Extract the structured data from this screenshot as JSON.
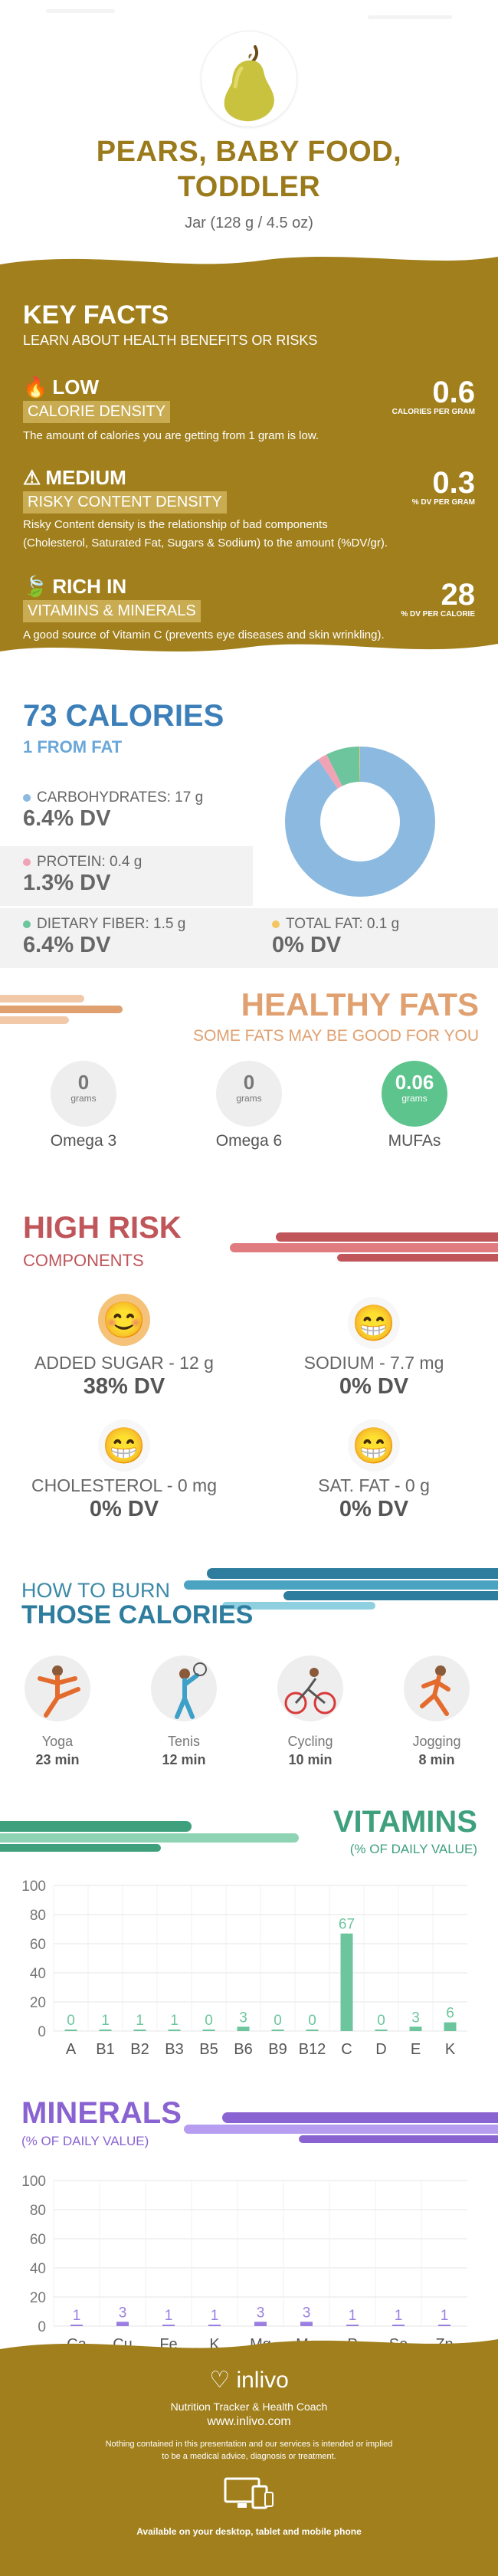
{
  "header": {
    "title_line1": "PEARS, BABY FOOD,",
    "title_line2": "TODDLER",
    "serving": "Jar (128 g / 4.5 oz)"
  },
  "key_facts": {
    "title": "KEY FACTS",
    "subtitle": "LEARN ABOUT HEALTH BENEFITS OR RISKS",
    "calorie_density": {
      "level": "LOW",
      "label": "CALORIE DENSITY",
      "value": "0.6",
      "unit": "CALORIES PER GRAM",
      "description": "The amount of calories you are getting from 1 gram is low."
    },
    "risky_content": {
      "level": "MEDIUM",
      "label": "RISKY CONTENT DENSITY",
      "value": "0.3",
      "unit": "% DV PER GRAM",
      "description_1": "Risky Content density is the relationship of bad components",
      "description_2": "(Cholesterol, Saturated Fat, Sugars & Sodium) to the amount (%DV/gr)."
    },
    "rich_in": {
      "level": "RICH  IN",
      "label": "VITAMINS & MINERALS",
      "value": "28",
      "unit": "% DV PER CALORIE",
      "description": "A good source of Vitamin C (prevents eye diseases and skin wrinkling)."
    }
  },
  "calories": {
    "title": "73 CALORIES",
    "subtitle": "1 FROM FAT",
    "carbs": {
      "label": "CARBOHYDRATES: 17 g",
      "dv": "6.4% DV",
      "color": "#8bb9e0"
    },
    "protein": {
      "label": "PROTEIN: 0.4 g",
      "dv": "1.3% DV",
      "color": "#f0a3b5"
    },
    "fiber": {
      "label": "DIETARY FIBER: 1.5 g",
      "dv": "6.4% DV",
      "color": "#6cc59c"
    },
    "fat": {
      "label": "TOTAL FAT: 0.1 g",
      "dv": "0% DV",
      "color": "#f2c560"
    },
    "donut": [
      {
        "name": "carbohydrates",
        "value": 90.5,
        "color": "#8bb9e0"
      },
      {
        "name": "protein",
        "value": 2.1,
        "color": "#f0a3b5"
      },
      {
        "name": "fiber",
        "value": 7.2,
        "color": "#6cc59c"
      },
      {
        "name": "fat",
        "value": 0.2,
        "color": "#f2c560"
      }
    ]
  },
  "healthy_fats": {
    "title": "HEALTHY FATS",
    "subtitle": "SOME FATS MAY BE GOOD FOR YOU",
    "items": [
      {
        "name": "Omega 3",
        "value": "0",
        "unit": "grams"
      },
      {
        "name": "Omega 6",
        "value": "0",
        "unit": "grams"
      },
      {
        "name": "MUFAs",
        "value": "0.06",
        "unit": "grams"
      }
    ]
  },
  "high_risk": {
    "title": "HIGH RISK",
    "subtitle": "COMPONENTS",
    "items": [
      {
        "name": "ADDED SUGAR - 12 g",
        "dv": "38% DV"
      },
      {
        "name": "SODIUM - 7.7 mg",
        "dv": "0% DV"
      },
      {
        "name": "CHOLESTEROL - 0 mg",
        "dv": "0% DV"
      },
      {
        "name": "SAT. FAT - 0 g",
        "dv": "0% DV"
      }
    ]
  },
  "burn": {
    "title_1": "HOW TO BURN",
    "title_2": "THOSE CALORIES",
    "activities": [
      {
        "name": "Yoga",
        "time": "23 min"
      },
      {
        "name": "Tenis",
        "time": "12 min"
      },
      {
        "name": "Cycling",
        "time": "10 min"
      },
      {
        "name": "Jogging",
        "time": "8 min"
      }
    ]
  },
  "vitamins": {
    "title": "VITAMINS",
    "subtitle": "(% OF DAILY VALUE)"
  },
  "minerals": {
    "title": "MINERALS",
    "subtitle": "(% OF DAILY VALUE)"
  },
  "chart_data": [
    {
      "type": "bar",
      "categories": [
        "A",
        "B1",
        "B2",
        "B3",
        "B5",
        "B6",
        "B9",
        "B12",
        "C",
        "D",
        "E",
        "K"
      ],
      "values": [
        0,
        1,
        1,
        1,
        0,
        3,
        0,
        0,
        67,
        0,
        3,
        6
      ],
      "ylim": [
        0,
        100
      ],
      "yticks": [
        0,
        20,
        40,
        60,
        80,
        100
      ],
      "grid": true,
      "color": "#6cc59c"
    },
    {
      "type": "bar",
      "categories": [
        "Ca",
        "Cu",
        "Fe",
        "K",
        "Mg",
        "Mn",
        "P",
        "Se",
        "Zn"
      ],
      "values": [
        1,
        3,
        1,
        1,
        3,
        3,
        1,
        1,
        1
      ],
      "ylim": [
        0,
        100
      ],
      "yticks": [
        0,
        20,
        40,
        60,
        80,
        100
      ],
      "grid": true,
      "color": "#9b7fe0"
    }
  ],
  "footer": {
    "brand": "inlivo",
    "tagline": "Nutrition Tracker & Health Coach",
    "url": "www.inlivo.com",
    "disclaimer_1": "Nothing contained in this presentation and our services is intended or implied",
    "disclaimer_2": "to be a medical advice, diagnosis or treatment.",
    "devices": "Available on your desktop, tablet and mobile phone"
  }
}
